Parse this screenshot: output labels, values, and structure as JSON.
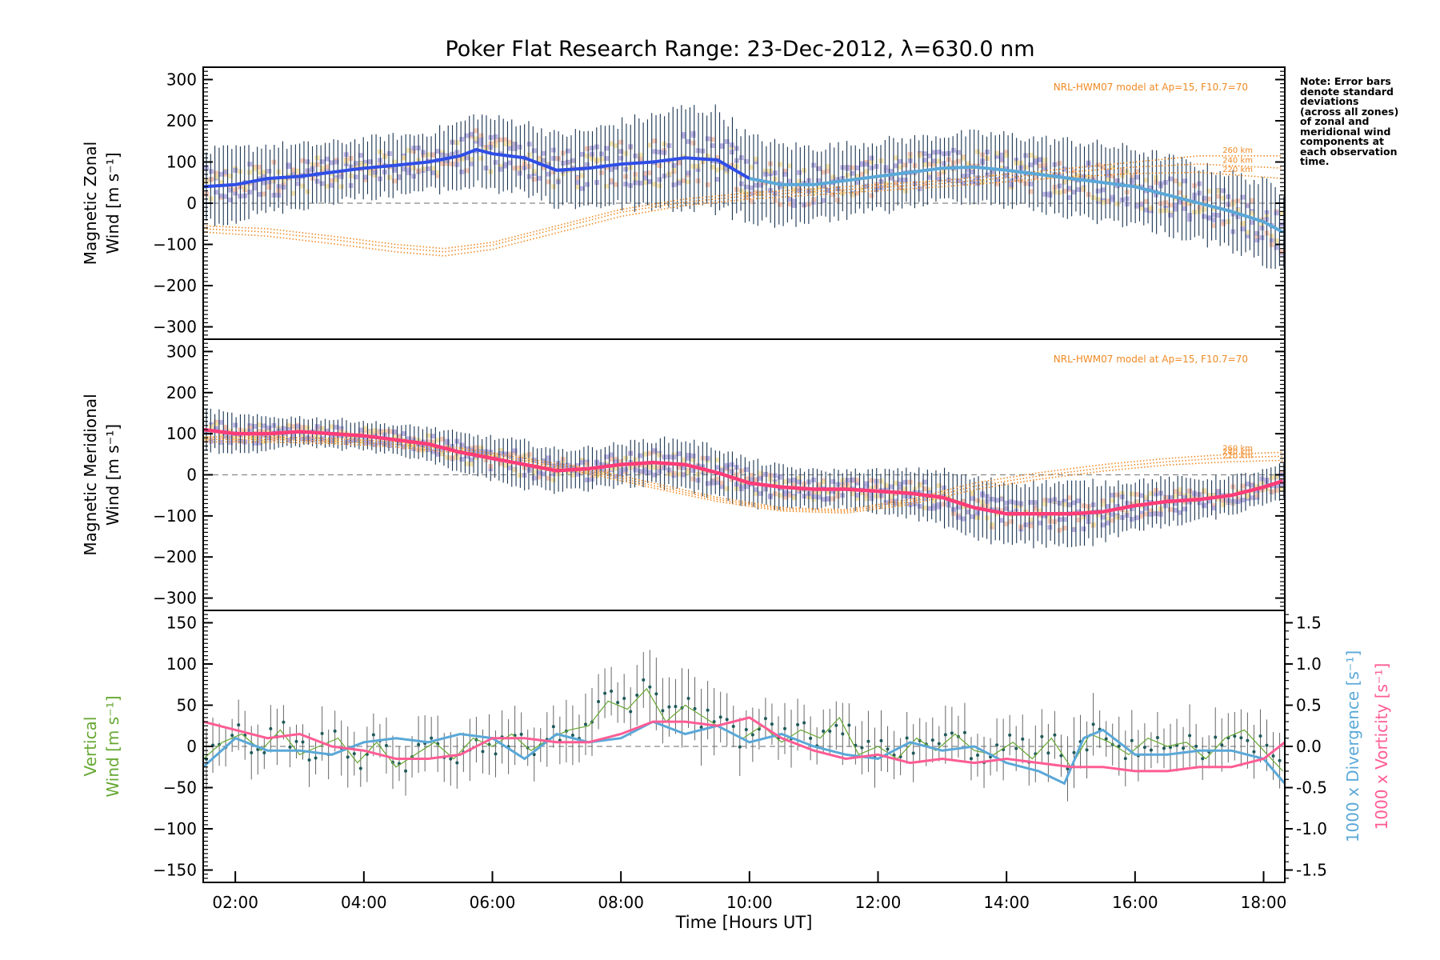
{
  "title": "Poker Flat Research Range: 23-Dec-2012, λ=630.0 nm",
  "note": [
    "Note: Error bars",
    "denote standard",
    "deviations",
    "(across all zones)",
    "of zonal and",
    "meridional wind",
    "components at",
    "each observation",
    "time."
  ],
  "colors": {
    "zonal": "#2f4ee8",
    "zonal_light": "#5aa8d8",
    "meridional": "#ff3c78",
    "model": "#f08a24",
    "vertical": "#66a832",
    "divergence": "#5aa8d8",
    "vorticity": "#ff5c95",
    "errorbar": "#1a3450",
    "scatter_a": "#b0a8e0",
    "scatter_b": "#f9c0a8",
    "scatter_c": "#f7e0a0"
  },
  "chart_data": [
    {
      "type": "line",
      "panel": "zonal",
      "ylabel": [
        "Magnetic Zonal",
        "Wind [m s⁻¹]"
      ],
      "xlim": [
        1.5,
        18.33
      ],
      "ylim": [
        -330,
        330
      ],
      "yticks": [
        -300,
        -200,
        -100,
        0,
        100,
        200,
        300
      ],
      "model_label": "NRL-HWM07 model at Ap=15, F10.7=70",
      "model_altitudes": [
        "260 km",
        "240 km",
        "220 km"
      ],
      "series": [
        {
          "role": "mean",
          "x": [
            1.5,
            2.0,
            2.5,
            3.0,
            3.5,
            4.0,
            4.5,
            5.0,
            5.5,
            5.75,
            6.0,
            6.5,
            7.0,
            7.5,
            8.0,
            8.5,
            9.0,
            9.5,
            10.0,
            10.5,
            11.0,
            11.5,
            12.0,
            12.5,
            13.0,
            13.5,
            14.0,
            14.5,
            15.0,
            15.5,
            16.0,
            16.5,
            17.0,
            17.5,
            18.0,
            18.3
          ],
          "y": [
            40,
            45,
            60,
            65,
            75,
            85,
            92,
            100,
            115,
            130,
            120,
            110,
            80,
            85,
            95,
            100,
            110,
            105,
            60,
            45,
            45,
            55,
            65,
            75,
            85,
            88,
            80,
            70,
            60,
            50,
            40,
            20,
            0,
            -20,
            -45,
            -70
          ],
          "spread": [
            85,
            85,
            80,
            75,
            70,
            70,
            70,
            70,
            80,
            85,
            85,
            85,
            85,
            90,
            100,
            110,
            120,
            120,
            100,
            95,
            90,
            85,
            85,
            80,
            80,
            80,
            85,
            85,
            90,
            90,
            90,
            90,
            90,
            90,
            95,
            100
          ]
        },
        {
          "role": "model",
          "name": "260 km",
          "x": [
            1.5,
            2.5,
            3.5,
            4.5,
            5.25,
            6.0,
            7.0,
            8.0,
            9.0,
            10.0,
            11.0,
            12.0,
            13.0,
            14.0,
            15.0,
            16.0,
            17.0,
            18.3
          ],
          "y": [
            -55,
            -62,
            -80,
            -100,
            -110,
            -95,
            -55,
            -15,
            10,
            25,
            35,
            45,
            55,
            70,
            85,
            100,
            115,
            115
          ]
        },
        {
          "role": "model",
          "name": "240 km",
          "x": [
            1.5,
            2.5,
            3.5,
            4.5,
            5.25,
            6.0,
            7.0,
            8.0,
            9.0,
            10.0,
            11.0,
            12.0,
            13.0,
            14.0,
            15.0,
            16.0,
            17.0,
            18.3
          ],
          "y": [
            -62,
            -70,
            -88,
            -108,
            -118,
            -102,
            -62,
            -22,
            3,
            18,
            28,
            38,
            48,
            62,
            76,
            88,
            95,
            85
          ]
        },
        {
          "role": "model",
          "name": "220 km",
          "x": [
            1.5,
            2.5,
            3.5,
            4.5,
            5.25,
            6.0,
            7.0,
            8.0,
            9.0,
            10.0,
            11.0,
            12.0,
            13.0,
            14.0,
            15.0,
            16.0,
            17.0,
            18.3
          ],
          "y": [
            -70,
            -80,
            -98,
            -118,
            -128,
            -112,
            -72,
            -32,
            -5,
            10,
            20,
            30,
            40,
            52,
            64,
            72,
            75,
            60
          ]
        }
      ]
    },
    {
      "type": "line",
      "panel": "meridional",
      "ylabel": [
        "Magnetic Meridional",
        "Wind [m s⁻¹]"
      ],
      "xlim": [
        1.5,
        18.33
      ],
      "ylim": [
        -330,
        330
      ],
      "yticks": [
        -300,
        -200,
        -100,
        0,
        100,
        200,
        300
      ],
      "model_label": "NRL-HWM07 model at Ap=15, F10.7=70",
      "model_altitudes": [
        "260 km",
        "240 km",
        "220 km"
      ],
      "series": [
        {
          "role": "mean",
          "x": [
            1.5,
            2.0,
            2.5,
            3.0,
            3.5,
            4.0,
            4.5,
            5.0,
            5.5,
            6.0,
            6.5,
            7.0,
            7.5,
            8.0,
            8.5,
            9.0,
            9.5,
            10.0,
            10.5,
            11.0,
            11.5,
            12.0,
            12.5,
            13.0,
            13.5,
            14.0,
            14.5,
            15.0,
            15.5,
            16.0,
            16.5,
            17.0,
            17.5,
            18.0,
            18.3
          ],
          "y": [
            110,
            100,
            100,
            105,
            100,
            95,
            85,
            75,
            55,
            40,
            25,
            10,
            15,
            25,
            30,
            25,
            5,
            -20,
            -30,
            -35,
            -35,
            -40,
            -45,
            -55,
            -80,
            -95,
            -95,
            -95,
            -90,
            -75,
            -65,
            -60,
            -50,
            -30,
            -15
          ],
          "spread": [
            50,
            45,
            40,
            35,
            35,
            35,
            35,
            40,
            45,
            50,
            55,
            50,
            50,
            50,
            55,
            60,
            60,
            55,
            50,
            45,
            45,
            50,
            55,
            65,
            70,
            75,
            75,
            75,
            70,
            60,
            55,
            50,
            45,
            40,
            40
          ]
        },
        {
          "role": "model",
          "name": "260 km",
          "x": [
            1.5,
            2.5,
            3.5,
            4.5,
            5.5,
            6.5,
            7.5,
            8.5,
            9.5,
            10.5,
            11.5,
            12.5,
            13.5,
            14.5,
            15.5,
            16.5,
            17.5,
            18.3
          ],
          "y": [
            92,
            92,
            88,
            80,
            65,
            40,
            15,
            -20,
            -55,
            -80,
            -85,
            -60,
            -20,
            5,
            25,
            40,
            50,
            55
          ]
        },
        {
          "role": "model",
          "name": "240 km",
          "x": [
            1.5,
            2.5,
            3.5,
            4.5,
            5.5,
            6.5,
            7.5,
            8.5,
            9.5,
            10.5,
            11.5,
            12.5,
            13.5,
            14.5,
            15.5,
            16.5,
            17.5,
            18.3
          ],
          "y": [
            86,
            86,
            82,
            74,
            59,
            34,
            9,
            -26,
            -60,
            -84,
            -89,
            -66,
            -28,
            -3,
            17,
            32,
            42,
            45
          ]
        },
        {
          "role": "model",
          "name": "220 km",
          "x": [
            1.5,
            2.5,
            3.5,
            4.5,
            5.5,
            6.5,
            7.5,
            8.5,
            9.5,
            10.5,
            11.5,
            12.5,
            13.5,
            14.5,
            15.5,
            16.5,
            17.5,
            18.3
          ],
          "y": [
            80,
            80,
            76,
            68,
            53,
            28,
            3,
            -32,
            -65,
            -88,
            -93,
            -72,
            -36,
            -11,
            9,
            24,
            32,
            35
          ]
        }
      ]
    },
    {
      "type": "line",
      "panel": "vertical",
      "ylabel": [
        "Vertical",
        "Wind [m s⁻¹]"
      ],
      "y2label_div": "1000 x Divergence [s⁻¹]",
      "y2label_vor": "1000 x Vorticity [s⁻¹]",
      "xlabel": "Time [Hours UT]",
      "xlim": [
        1.5,
        18.33
      ],
      "ylim": [
        -165,
        165
      ],
      "yticks": [
        -150,
        -100,
        -50,
        0,
        50,
        100,
        150
      ],
      "y2lim": [
        -1.65,
        1.65
      ],
      "y2ticks": [
        -1.5,
        -1.0,
        -0.5,
        0.0,
        0.5,
        1.0,
        1.5
      ],
      "xticks": [
        2,
        4,
        6,
        8,
        10,
        12,
        14,
        16,
        18
      ],
      "xticklabels": [
        "02:00",
        "04:00",
        "06:00",
        "08:00",
        "10:00",
        "12:00",
        "14:00",
        "16:00",
        "18:00"
      ],
      "series": [
        {
          "role": "vertical",
          "x": [
            1.5,
            1.8,
            2.1,
            2.4,
            2.7,
            3.0,
            3.3,
            3.6,
            3.9,
            4.2,
            4.5,
            4.8,
            5.1,
            5.4,
            5.7,
            6.0,
            6.3,
            6.6,
            6.9,
            7.2,
            7.5,
            7.8,
            8.1,
            8.4,
            8.7,
            9.0,
            9.3,
            9.6,
            9.9,
            10.2,
            10.5,
            10.8,
            11.1,
            11.4,
            11.7,
            12.0,
            12.3,
            12.6,
            12.9,
            13.2,
            13.5,
            13.8,
            14.1,
            14.4,
            14.7,
            15.0,
            15.3,
            15.6,
            15.9,
            16.2,
            16.5,
            16.8,
            17.1,
            17.4,
            17.7,
            18.0,
            18.3
          ],
          "y": [
            -15,
            5,
            15,
            -5,
            20,
            -10,
            0,
            10,
            -20,
            5,
            -25,
            -10,
            5,
            -15,
            10,
            0,
            15,
            -5,
            10,
            20,
            25,
            55,
            45,
            70,
            30,
            50,
            35,
            20,
            10,
            25,
            5,
            20,
            10,
            35,
            -10,
            0,
            -15,
            10,
            -5,
            15,
            -5,
            -10,
            5,
            -15,
            10,
            -25,
            15,
            5,
            -10,
            10,
            0,
            5,
            -15,
            10,
            20,
            -5,
            -30
          ],
          "err": [
            30,
            25,
            30,
            25,
            30,
            28,
            25,
            28,
            30,
            25,
            28,
            30,
            28,
            25,
            30,
            28,
            30,
            25,
            28,
            30,
            32,
            35,
            35,
            38,
            35,
            40,
            38,
            35,
            30,
            32,
            30,
            30,
            30,
            35,
            30,
            30,
            28,
            30,
            28,
            30,
            28,
            30,
            28,
            30,
            28,
            35,
            30,
            28,
            30,
            28,
            28,
            30,
            28,
            30,
            28,
            30,
            30
          ]
        },
        {
          "role": "divergence",
          "x": [
            1.5,
            2.0,
            2.5,
            3.0,
            3.5,
            4.0,
            4.5,
            5.0,
            5.5,
            6.0,
            6.5,
            7.0,
            7.5,
            8.0,
            8.5,
            9.0,
            9.5,
            10.0,
            10.5,
            11.0,
            11.5,
            12.0,
            12.5,
            13.0,
            13.5,
            14.0,
            14.5,
            14.9,
            15.2,
            15.5,
            16.0,
            16.5,
            17.0,
            17.5,
            18.0,
            18.33
          ],
          "y": [
            -0.25,
            0.1,
            -0.05,
            -0.05,
            -0.1,
            0.05,
            0.1,
            0.05,
            0.15,
            0.1,
            -0.15,
            0.15,
            0.05,
            0.1,
            0.3,
            0.15,
            0.25,
            0.05,
            0.15,
            0.0,
            -0.1,
            -0.15,
            0.05,
            -0.05,
            0.0,
            -0.2,
            -0.3,
            -0.45,
            0.1,
            0.2,
            -0.1,
            -0.1,
            -0.05,
            -0.05,
            -0.15,
            -0.45
          ]
        },
        {
          "role": "vorticity",
          "x": [
            1.5,
            2.0,
            2.5,
            3.0,
            3.5,
            4.0,
            4.5,
            5.0,
            5.5,
            6.0,
            6.5,
            7.0,
            7.5,
            8.0,
            8.5,
            9.0,
            9.5,
            10.0,
            10.5,
            11.0,
            11.5,
            12.0,
            12.5,
            13.0,
            13.5,
            14.0,
            14.5,
            15.0,
            15.5,
            16.0,
            16.5,
            17.0,
            17.5,
            18.0,
            18.33
          ],
          "y": [
            0.3,
            0.2,
            0.1,
            0.15,
            0.0,
            -0.05,
            -0.15,
            -0.15,
            -0.1,
            0.1,
            0.1,
            0.05,
            0.05,
            0.15,
            0.3,
            0.3,
            0.25,
            0.35,
            0.1,
            -0.05,
            -0.15,
            -0.1,
            -0.2,
            -0.15,
            -0.2,
            -0.15,
            -0.2,
            -0.25,
            -0.25,
            -0.3,
            -0.3,
            -0.25,
            -0.25,
            -0.15,
            0.05
          ]
        }
      ]
    }
  ]
}
